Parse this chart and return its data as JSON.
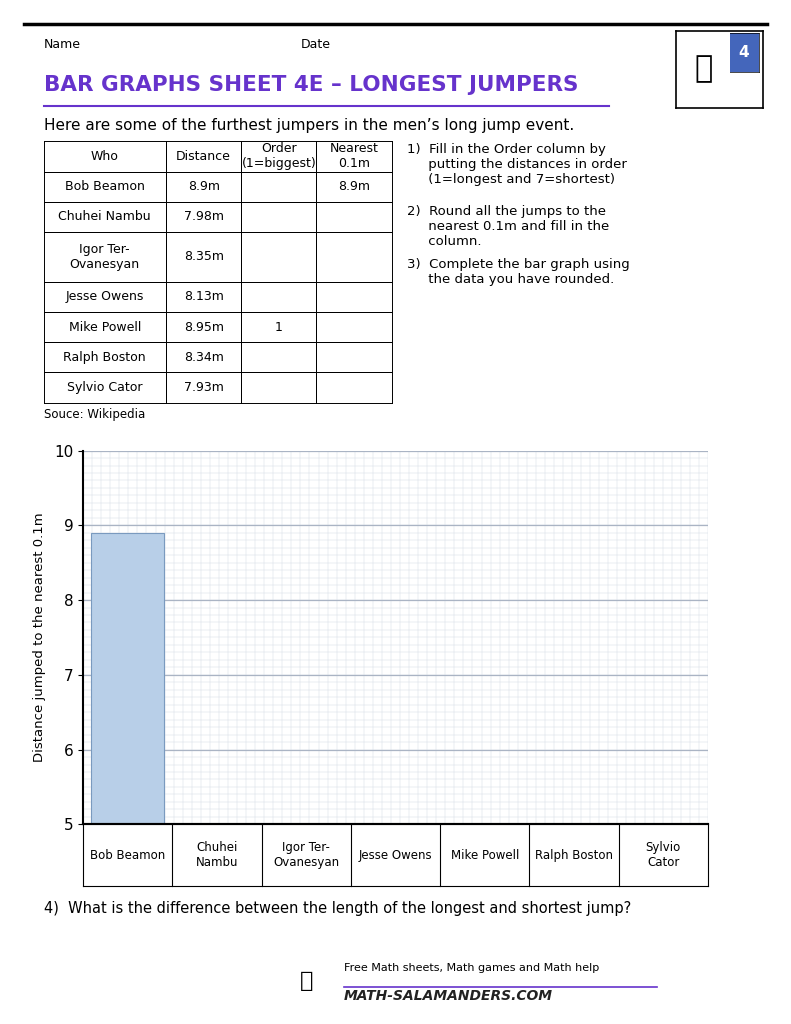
{
  "title": "BAR GRAPHS SHEET 4E – LONGEST JUMPERS",
  "title_color": "#6633cc",
  "subtitle": "Here are some of the furthest jumpers in the men’s long jump event.",
  "name_label": "Name",
  "date_label": "Date",
  "source_label": "Souce: Wikipedia",
  "question4": "4)  What is the difference between the length of the longest and shortest jump?",
  "table_headers": [
    "Who",
    "Distance",
    "Order\n(1=biggest)",
    "Nearest\n0.1m"
  ],
  "table_rows": [
    [
      "Bob Beamon",
      "8.9m",
      "",
      "8.9m"
    ],
    [
      "Chuhei Nambu",
      "7.98m",
      "",
      ""
    ],
    [
      "Igor Ter-\nOvanesyan",
      "8.35m",
      "",
      ""
    ],
    [
      "Jesse Owens",
      "8.13m",
      "",
      ""
    ],
    [
      "Mike Powell",
      "8.95m",
      "1",
      ""
    ],
    [
      "Ralph Boston",
      "8.34m",
      "",
      ""
    ],
    [
      "Sylvio Cator",
      "7.93m",
      "",
      ""
    ]
  ],
  "instructions": [
    "1)  Fill in the Order column by\n     putting the distances in order\n     (1=longest and 7=shortest)",
    "2)  Round all the jumps to the\n     nearest 0.1m and fill in the\n     column.",
    "3)  Complete the bar graph using\n     the data you have rounded."
  ],
  "bar_names": [
    "Bob Beamon",
    "Chuhei\nNambu",
    "Igor Ter-\nOvanesyan",
    "Jesse Owens",
    "Mike Powell",
    "Ralph Boston",
    "Sylvio\nCator"
  ],
  "bar_values": [
    8.9,
    0,
    0,
    0,
    0,
    0,
    0
  ],
  "bar_color": "#b8cfe8",
  "bar_edge_color": "#7a9abf",
  "grid_major_color": "#aab4c4",
  "grid_minor_color": "#d4dae4",
  "ylim": [
    5,
    10
  ],
  "yticks": [
    5,
    6,
    7,
    8,
    9,
    10
  ],
  "ylabel": "Distance jumped to the nearest 0.1m",
  "page_bg": "#ffffff",
  "footer_small": "Free Math sheets, Math games and Math help",
  "footer_big": "ATH-SALAMANDERS.COM"
}
